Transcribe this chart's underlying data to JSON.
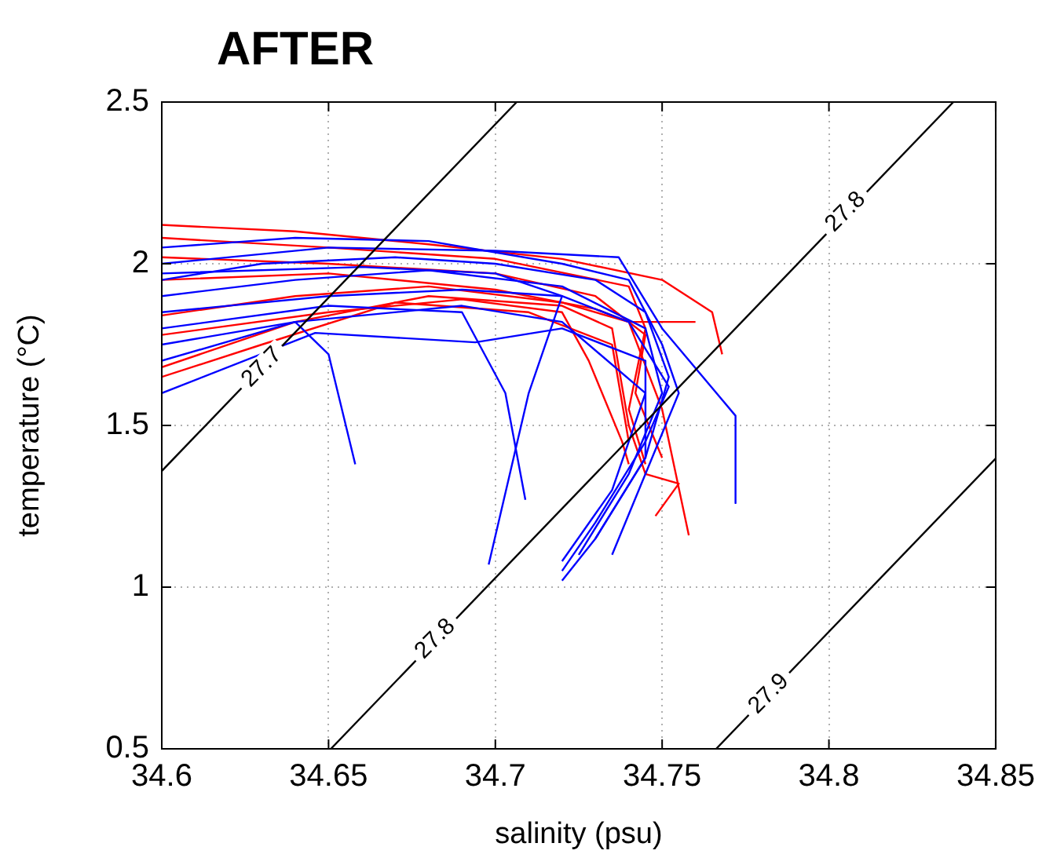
{
  "chart_data": {
    "type": "line",
    "title": "AFTER",
    "xlabel": "salinity (psu)",
    "ylabel": "temperature (°C)",
    "xlim": [
      34.6,
      34.85
    ],
    "xticks": [
      34.6,
      34.65,
      34.7,
      34.75,
      34.8,
      34.85
    ],
    "ylim": [
      0.5,
      2.5
    ],
    "yticks": [
      0.5,
      1,
      1.5,
      2,
      2.5
    ],
    "grid": true,
    "marker": "none",
    "line_style": "solid",
    "series": [
      {
        "color": "#000000",
        "x": [
          34.6,
          34.7064
        ],
        "values": [
          1.359,
          2.5
        ]
      },
      {
        "color": "#000000",
        "x": [
          34.6507,
          34.8373
        ],
        "values": [
          0.5,
          2.5
        ]
      },
      {
        "color": "#000000",
        "x": [
          34.7662,
          34.85
        ],
        "values": [
          0.5,
          1.398
        ]
      },
      {
        "color": "#0000ff",
        "x": [
          34.6,
          34.63,
          34.67,
          34.7,
          34.73,
          34.745,
          34.752,
          34.745,
          34.73,
          34.72
        ],
        "values": [
          1.95,
          2.0,
          2.02,
          2.0,
          1.95,
          1.85,
          1.65,
          1.4,
          1.15,
          1.02
        ]
      },
      {
        "color": "#0000ff",
        "x": [
          34.6,
          34.64,
          34.68,
          34.72,
          34.745,
          34.75,
          34.74,
          34.725
        ],
        "values": [
          1.9,
          1.95,
          1.98,
          1.93,
          1.8,
          1.6,
          1.35,
          1.1
        ]
      },
      {
        "color": "#0000ff",
        "x": [
          34.6,
          34.64,
          34.68,
          34.72,
          34.74,
          34.75,
          34.755,
          34.745,
          34.735
        ],
        "values": [
          2.05,
          2.08,
          2.07,
          2.0,
          1.95,
          1.75,
          1.6,
          1.35,
          1.1
        ]
      },
      {
        "color": "#0000ff",
        "x": [
          34.6,
          34.646,
          34.694,
          34.72,
          34.745,
          34.745,
          34.73
        ],
        "values": [
          1.6,
          1.786,
          1.757,
          1.8,
          1.7,
          1.4,
          1.15
        ]
      },
      {
        "color": "#0000ff",
        "x": [
          34.6,
          34.65,
          34.69,
          34.703,
          34.709
        ],
        "values": [
          1.8,
          1.87,
          1.85,
          1.6,
          1.27
        ]
      },
      {
        "color": "#0000ff",
        "x": [
          34.6,
          34.65,
          34.7,
          34.737,
          34.75,
          34.772,
          34.772
        ],
        "values": [
          2.0,
          2.05,
          2.04,
          2.02,
          1.8,
          1.53,
          1.26
        ]
      },
      {
        "color": "#0000ff",
        "x": [
          34.6,
          34.65,
          34.69,
          34.72,
          34.74,
          34.752,
          34.745,
          34.73,
          34.72
        ],
        "values": [
          1.85,
          1.9,
          1.92,
          1.9,
          1.82,
          1.62,
          1.45,
          1.2,
          1.05
        ]
      },
      {
        "color": "#0000ff",
        "x": [
          34.6,
          34.64,
          34.69,
          34.72,
          34.745,
          34.735,
          34.72
        ],
        "values": [
          1.7,
          1.82,
          1.87,
          1.82,
          1.6,
          1.3,
          1.08
        ]
      },
      {
        "color": "#0000ff",
        "x": [
          34.6,
          34.66,
          34.7,
          34.72,
          34.71,
          34.698
        ],
        "values": [
          1.97,
          1.99,
          1.97,
          1.9,
          1.6,
          1.07
        ]
      },
      {
        "color": "#0000ff",
        "x": [
          34.6,
          34.64,
          34.65,
          34.658
        ],
        "values": [
          1.75,
          1.82,
          1.72,
          1.38
        ]
      },
      {
        "color": "#ff0000",
        "x": [
          34.6,
          34.64,
          34.68,
          34.72,
          34.75,
          34.765,
          34.768
        ],
        "values": [
          2.12,
          2.1,
          2.06,
          2.015,
          1.95,
          1.85,
          1.72
        ]
      },
      {
        "color": "#ff0000",
        "x": [
          34.6,
          34.65,
          34.7,
          34.74,
          34.745,
          34.74,
          34.745
        ],
        "values": [
          2.08,
          2.05,
          2.015,
          1.93,
          1.8,
          1.55,
          1.38
        ]
      },
      {
        "color": "#ff0000",
        "x": [
          34.6,
          34.64,
          34.68,
          34.72,
          34.74,
          34.76
        ],
        "values": [
          1.84,
          1.9,
          1.93,
          1.88,
          1.82,
          1.82
        ]
      },
      {
        "color": "#ff0000",
        "x": [
          34.6,
          34.64,
          34.68,
          34.72,
          34.735,
          34.74,
          34.745,
          34.755,
          34.748
        ],
        "values": [
          1.68,
          1.82,
          1.9,
          1.87,
          1.8,
          1.5,
          1.35,
          1.32,
          1.22
        ]
      },
      {
        "color": "#ff0000",
        "x": [
          34.6,
          34.63,
          34.67,
          34.71,
          34.735,
          34.74
        ],
        "values": [
          1.65,
          1.75,
          1.88,
          1.85,
          1.75,
          1.45
        ]
      },
      {
        "color": "#ff0000",
        "x": [
          34.6,
          34.65,
          34.7,
          34.73,
          34.74,
          34.75,
          34.758
        ],
        "values": [
          1.95,
          1.97,
          1.92,
          1.86,
          1.82,
          1.55,
          1.16
        ]
      },
      {
        "color": "#ff0000",
        "x": [
          34.6,
          34.65,
          34.69,
          34.72,
          34.728,
          34.738,
          34.74
        ],
        "values": [
          1.78,
          1.85,
          1.89,
          1.85,
          1.7,
          1.45,
          1.38
        ]
      },
      {
        "color": "#ff0000",
        "x": [
          34.6,
          34.65,
          34.7,
          34.73,
          34.745,
          34.742,
          34.75
        ],
        "values": [
          2.02,
          2.0,
          1.97,
          1.9,
          1.78,
          1.6,
          1.4
        ]
      }
    ],
    "annotations": [
      {
        "text": "27.7",
        "x": 34.63,
        "y": 1.68
      },
      {
        "text": "27.8",
        "x": 34.682,
        "y": 0.84
      },
      {
        "text": "27.8",
        "x": 34.805,
        "y": 2.16
      },
      {
        "text": "27.9",
        "x": 34.782,
        "y": 0.67
      }
    ]
  }
}
